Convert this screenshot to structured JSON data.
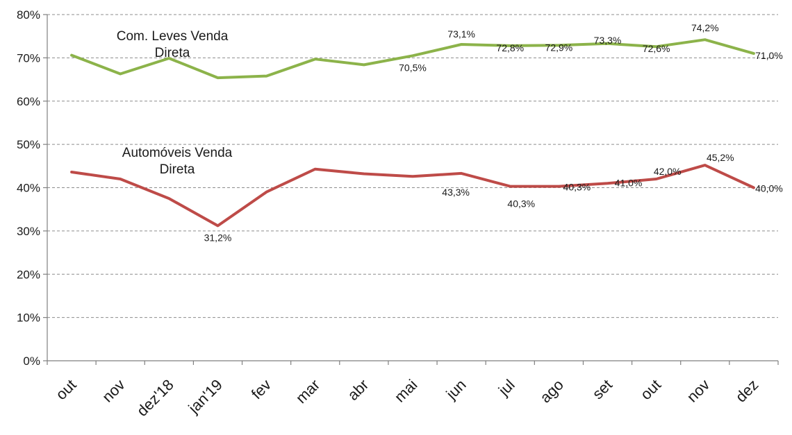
{
  "chart_data": {
    "type": "line",
    "categories": [
      "out",
      "nov",
      "dez'18",
      "jan'19",
      "fev",
      "mar",
      "abr",
      "mai",
      "jun",
      "jul",
      "ago",
      "set",
      "out",
      "nov",
      "dez"
    ],
    "y_ticks": [
      "0%",
      "10%",
      "20%",
      "30%",
      "40%",
      "50%",
      "60%",
      "70%",
      "80%"
    ],
    "ylim": [
      0,
      80
    ],
    "grid": true,
    "series": [
      {
        "name_lines": [
          "Com. Leves Venda",
          "Direta"
        ],
        "color": "#8cb34a",
        "values": [
          70.6,
          66.3,
          69.9,
          65.4,
          65.8,
          69.7,
          68.4,
          70.5,
          73.1,
          72.8,
          72.9,
          73.3,
          72.6,
          74.2,
          71.0
        ],
        "labels": [
          "",
          "",
          "",
          "",
          "",
          "",
          "",
          "70,5%",
          "73,1%",
          "72,8%",
          "72,9%",
          "73,3%",
          "72,6%",
          "74,2%",
          "71,0%"
        ]
      },
      {
        "name_lines": [
          "Automóveis Venda",
          "Direta"
        ],
        "color": "#be4b48",
        "values": [
          43.6,
          42.0,
          37.5,
          31.2,
          39.0,
          44.3,
          43.2,
          42.6,
          43.3,
          40.3,
          40.3,
          41.0,
          42.0,
          45.2,
          40.0
        ],
        "labels": [
          "",
          "",
          "",
          "31,2%",
          "",
          "",
          "",
          "",
          "43,3%",
          "40,3%",
          "40,3%",
          "41,0%",
          "42,0%",
          "45,2%",
          "40,0%"
        ]
      }
    ]
  }
}
